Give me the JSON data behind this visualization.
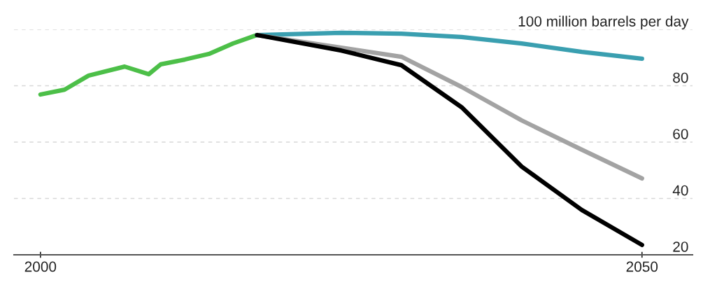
{
  "chart_data": {
    "type": "line",
    "ylabel": null,
    "series": [
      {
        "color": "#4cbf48",
        "x": [
          2000,
          2002,
          2004,
          2007,
          2009,
          2010,
          2012,
          2014,
          2016,
          2018
        ],
        "values": [
          76.9,
          78.6,
          83.6,
          86.8,
          84.1,
          87.6,
          89.3,
          91.3,
          95.0,
          98.0
        ]
      },
      {
        "color": "#3a9fb0",
        "x": [
          2018,
          2025,
          2030,
          2035,
          2040,
          2045,
          2050
        ],
        "values": [
          98.0,
          98.8,
          98.5,
          97.3,
          95.0,
          92.0,
          89.6
        ]
      },
      {
        "color": "#a3a3a3",
        "x": [
          2018,
          2025,
          2030,
          2035,
          2040,
          2045,
          2050
        ],
        "values": [
          98.0,
          93.5,
          90.3,
          79.6,
          67.7,
          57.3,
          47.1
        ]
      },
      {
        "color": "#000000",
        "x": [
          2018,
          2025,
          2030,
          2035,
          2040,
          2045,
          2050
        ],
        "values": [
          98.0,
          92.5,
          87.3,
          72.4,
          51.3,
          35.9,
          23.5
        ]
      }
    ],
    "xlim": [
      1997.8,
      2054.2
    ],
    "xticks": [
      2000,
      2050
    ],
    "ylim": [
      20,
      100
    ],
    "yticks": [
      {
        "value": 100,
        "label": "100 million barrels per day"
      },
      80,
      60,
      40,
      20
    ],
    "grid": "y",
    "line_style": "solid",
    "marker": "none"
  }
}
